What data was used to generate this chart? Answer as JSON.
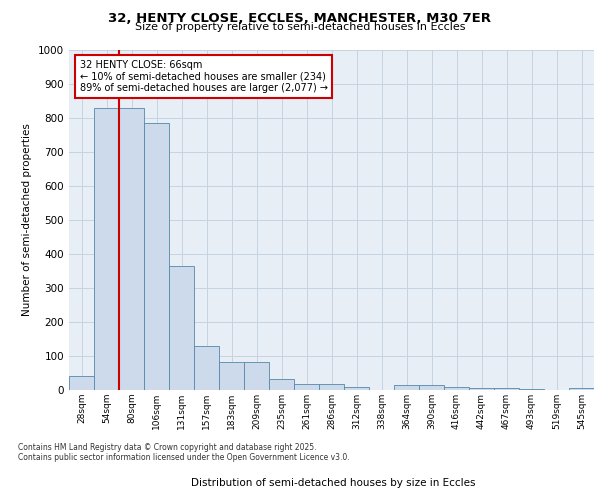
{
  "title_line1": "32, HENTY CLOSE, ECCLES, MANCHESTER, M30 7ER",
  "title_line2": "Size of property relative to semi-detached houses in Eccles",
  "xlabel": "Distribution of semi-detached houses by size in Eccles",
  "ylabel": "Number of semi-detached properties",
  "categories": [
    "28sqm",
    "54sqm",
    "80sqm",
    "106sqm",
    "131sqm",
    "157sqm",
    "183sqm",
    "209sqm",
    "235sqm",
    "261sqm",
    "286sqm",
    "312sqm",
    "338sqm",
    "364sqm",
    "390sqm",
    "416sqm",
    "442sqm",
    "467sqm",
    "493sqm",
    "519sqm",
    "545sqm"
  ],
  "values": [
    40,
    830,
    830,
    785,
    365,
    130,
    82,
    82,
    33,
    18,
    18,
    10,
    0,
    14,
    14,
    10,
    5,
    5,
    2,
    0,
    5
  ],
  "bar_color": "#ccdaeb",
  "bar_edge_color": "#5588aa",
  "grid_color": "#c5d3e0",
  "bg_color": "#e8eef5",
  "vline_color": "#cc0000",
  "vline_bin": 1,
  "annotation_text": "32 HENTY CLOSE: 66sqm\n← 10% of semi-detached houses are smaller (234)\n89% of semi-detached houses are larger (2,077) →",
  "annotation_box_color": "#ffffff",
  "annotation_box_edge": "#cc0000",
  "footer_text": "Contains HM Land Registry data © Crown copyright and database right 2025.\nContains public sector information licensed under the Open Government Licence v3.0.",
  "ylim": [
    0,
    1000
  ],
  "yticks": [
    0,
    100,
    200,
    300,
    400,
    500,
    600,
    700,
    800,
    900,
    1000
  ]
}
